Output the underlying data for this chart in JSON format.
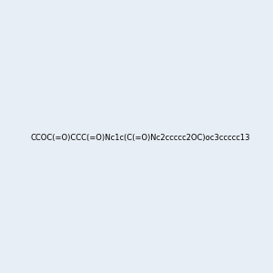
{
  "smiles": "CCOC(=O)CCC(=O)Nc1c(C(=O)Nc2ccccc2OC)oc3ccccc13",
  "title": "",
  "bg_color": "#e8eef5",
  "img_size": [
    300,
    300
  ]
}
